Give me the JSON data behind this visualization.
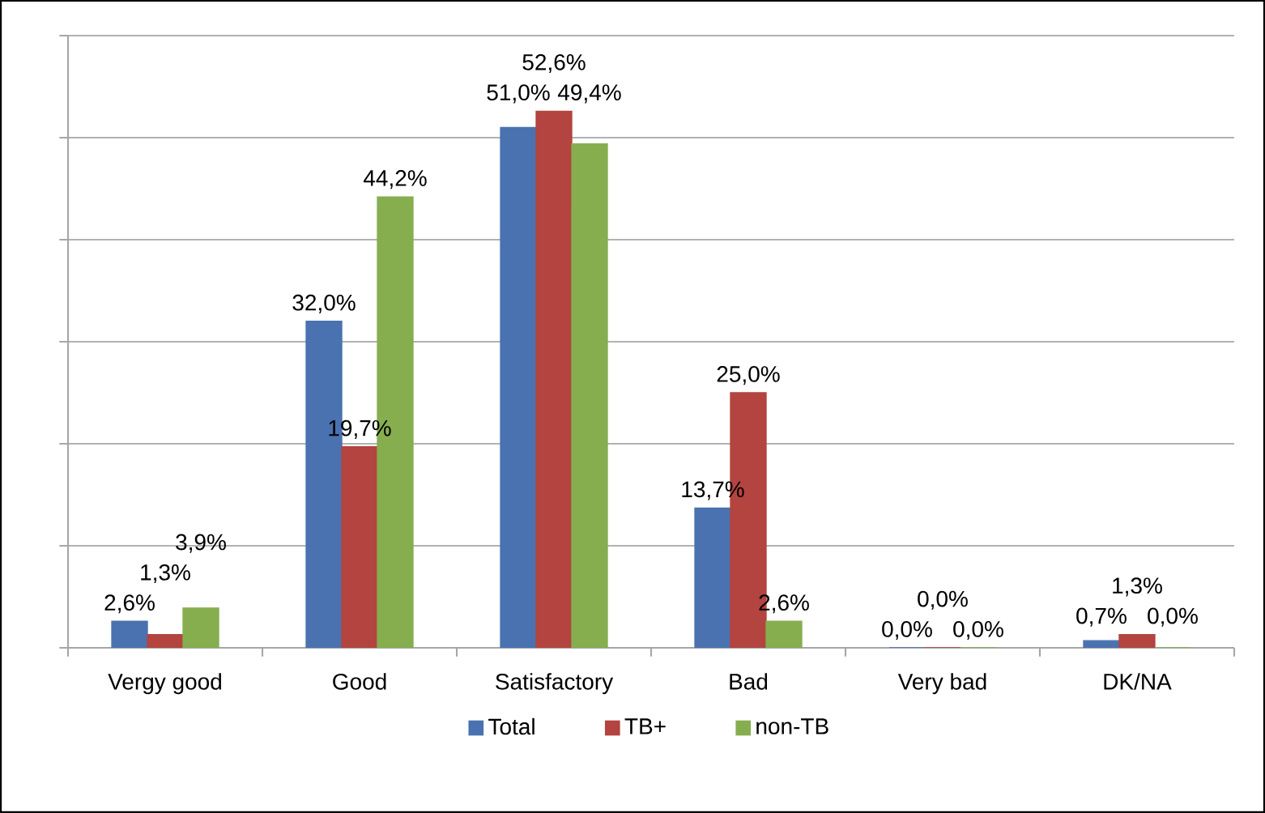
{
  "chart_data": {
    "type": "bar",
    "categories": [
      "Vergy good",
      "Good",
      "Satisfactory",
      "Bad",
      "Very bad",
      "DK/NA"
    ],
    "series": [
      {
        "name": "Total",
        "color": "#4a72b0",
        "values": [
          2.6,
          32.0,
          51.0,
          13.7,
          0.0,
          0.7
        ],
        "value_labels": [
          "2,6%",
          "32,0%",
          "51,0%",
          "13,7%",
          "0,0%",
          "0,7%"
        ]
      },
      {
        "name": "TB+",
        "color": "#b3443f",
        "values": [
          1.3,
          19.7,
          52.6,
          25.0,
          0.0,
          1.3
        ],
        "value_labels": [
          "1,3%",
          "19,7%",
          "52,6%",
          "25,0%",
          "0,0%",
          "1,3%"
        ]
      },
      {
        "name": "non-TB",
        "color": "#86ae4f",
        "values": [
          3.9,
          44.2,
          49.4,
          2.6,
          0.0,
          0.0
        ],
        "value_labels": [
          "3,9%",
          "44,2%",
          "49,4%",
          "2,6%",
          "0,0%",
          "0,0%"
        ]
      }
    ],
    "ylim": [
      0,
      60
    ],
    "yticks": [
      {
        "value": 0,
        "label": null
      },
      {
        "value": 10,
        "label": null
      },
      {
        "value": 20,
        "label": null
      },
      {
        "value": 30,
        "label": null
      },
      {
        "value": 40,
        "label": null
      },
      {
        "value": 50,
        "label": null
      },
      {
        "value": 60,
        "label": null
      }
    ],
    "grid": "y",
    "legend": "bottom",
    "tick_labels": "x"
  }
}
